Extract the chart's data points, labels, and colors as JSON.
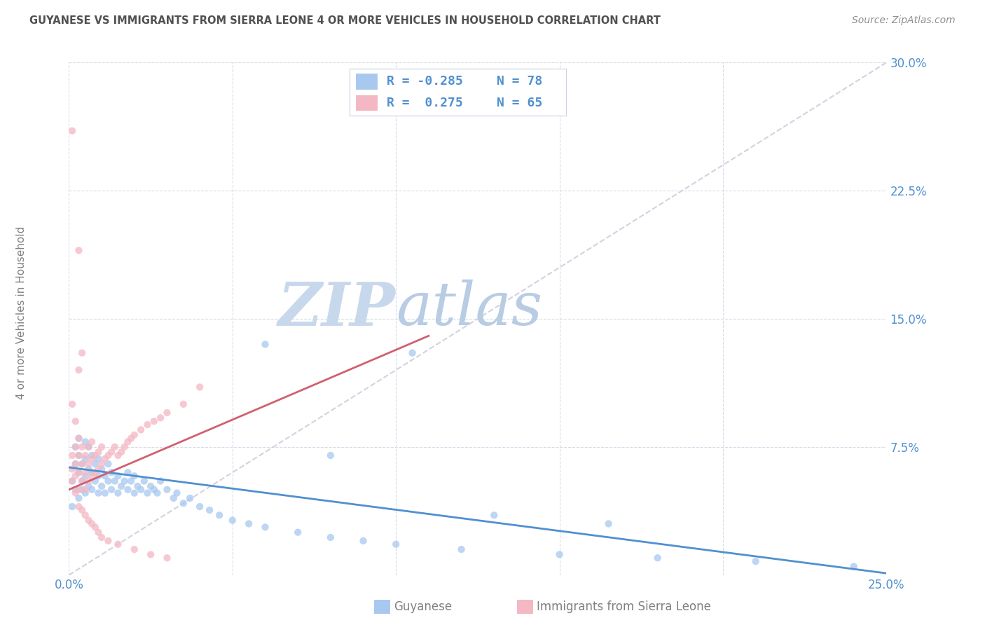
{
  "title": "GUYANESE VS IMMIGRANTS FROM SIERRA LEONE 4 OR MORE VEHICLES IN HOUSEHOLD CORRELATION CHART",
  "source": "Source: ZipAtlas.com",
  "ylabel": "4 or more Vehicles in Household",
  "xlim": [
    0.0,
    0.25
  ],
  "ylim": [
    0.0,
    0.3
  ],
  "xticks": [
    0.0,
    0.05,
    0.1,
    0.15,
    0.2,
    0.25
  ],
  "yticks": [
    0.0,
    0.075,
    0.15,
    0.225,
    0.3
  ],
  "xticklabels": [
    "0.0%",
    "",
    "",
    "",
    "",
    "25.0%"
  ],
  "yticklabels_right": [
    "",
    "7.5%",
    "15.0%",
    "22.5%",
    "30.0%"
  ],
  "blue_color": "#a8c8f0",
  "pink_color": "#f4b8c4",
  "blue_line_color": "#5090d0",
  "pink_line_color": "#d06070",
  "diag_line_color": "#c8c8d8",
  "watermark_zip": "ZIP",
  "watermark_atlas": "atlas",
  "legend_R_blue": "-0.285",
  "legend_N_blue": "78",
  "legend_R_pink": "0.275",
  "legend_N_pink": "65",
  "blue_scatter_x": [
    0.001,
    0.001,
    0.002,
    0.002,
    0.002,
    0.003,
    0.003,
    0.003,
    0.003,
    0.004,
    0.004,
    0.004,
    0.005,
    0.005,
    0.005,
    0.005,
    0.006,
    0.006,
    0.006,
    0.007,
    0.007,
    0.007,
    0.008,
    0.008,
    0.009,
    0.009,
    0.009,
    0.01,
    0.01,
    0.011,
    0.011,
    0.012,
    0.012,
    0.013,
    0.013,
    0.014,
    0.015,
    0.015,
    0.016,
    0.017,
    0.018,
    0.018,
    0.019,
    0.02,
    0.02,
    0.021,
    0.022,
    0.023,
    0.024,
    0.025,
    0.026,
    0.027,
    0.028,
    0.03,
    0.032,
    0.033,
    0.035,
    0.037,
    0.04,
    0.043,
    0.046,
    0.05,
    0.055,
    0.06,
    0.07,
    0.08,
    0.09,
    0.1,
    0.12,
    0.15,
    0.18,
    0.21,
    0.24,
    0.06,
    0.08,
    0.105,
    0.13,
    0.165
  ],
  "blue_scatter_y": [
    0.055,
    0.04,
    0.065,
    0.05,
    0.075,
    0.045,
    0.06,
    0.07,
    0.08,
    0.05,
    0.065,
    0.055,
    0.048,
    0.058,
    0.068,
    0.078,
    0.052,
    0.062,
    0.075,
    0.05,
    0.06,
    0.07,
    0.055,
    0.065,
    0.048,
    0.058,
    0.068,
    0.052,
    0.062,
    0.048,
    0.058,
    0.055,
    0.065,
    0.05,
    0.06,
    0.055,
    0.048,
    0.058,
    0.052,
    0.055,
    0.05,
    0.06,
    0.055,
    0.048,
    0.058,
    0.052,
    0.05,
    0.055,
    0.048,
    0.052,
    0.05,
    0.048,
    0.055,
    0.05,
    0.045,
    0.048,
    0.042,
    0.045,
    0.04,
    0.038,
    0.035,
    0.032,
    0.03,
    0.028,
    0.025,
    0.022,
    0.02,
    0.018,
    0.015,
    0.012,
    0.01,
    0.008,
    0.005,
    0.135,
    0.07,
    0.13,
    0.035,
    0.03
  ],
  "pink_scatter_x": [
    0.001,
    0.001,
    0.001,
    0.002,
    0.002,
    0.002,
    0.002,
    0.003,
    0.003,
    0.003,
    0.003,
    0.004,
    0.004,
    0.004,
    0.005,
    0.005,
    0.005,
    0.006,
    0.006,
    0.006,
    0.007,
    0.007,
    0.007,
    0.008,
    0.008,
    0.009,
    0.009,
    0.01,
    0.01,
    0.011,
    0.012,
    0.013,
    0.014,
    0.015,
    0.016,
    0.017,
    0.018,
    0.019,
    0.02,
    0.022,
    0.024,
    0.026,
    0.028,
    0.03,
    0.035,
    0.04,
    0.003,
    0.004,
    0.005,
    0.006,
    0.007,
    0.008,
    0.009,
    0.01,
    0.012,
    0.015,
    0.02,
    0.025,
    0.03,
    0.001,
    0.002,
    0.003,
    0.004,
    0.001,
    0.003
  ],
  "pink_scatter_y": [
    0.062,
    0.055,
    0.07,
    0.048,
    0.058,
    0.065,
    0.075,
    0.05,
    0.06,
    0.07,
    0.08,
    0.055,
    0.065,
    0.075,
    0.05,
    0.06,
    0.07,
    0.055,
    0.065,
    0.075,
    0.058,
    0.068,
    0.078,
    0.06,
    0.07,
    0.062,
    0.072,
    0.065,
    0.075,
    0.068,
    0.07,
    0.072,
    0.075,
    0.07,
    0.072,
    0.075,
    0.078,
    0.08,
    0.082,
    0.085,
    0.088,
    0.09,
    0.092,
    0.095,
    0.1,
    0.11,
    0.04,
    0.038,
    0.035,
    0.032,
    0.03,
    0.028,
    0.025,
    0.022,
    0.02,
    0.018,
    0.015,
    0.012,
    0.01,
    0.1,
    0.09,
    0.12,
    0.13,
    0.26,
    0.19
  ],
  "background_color": "#ffffff",
  "grid_color": "#d4dce8",
  "title_color": "#505050",
  "axis_label_color": "#5090d0",
  "ylabel_color": "#808080",
  "source_color": "#909090",
  "bottom_label_color": "#808080"
}
